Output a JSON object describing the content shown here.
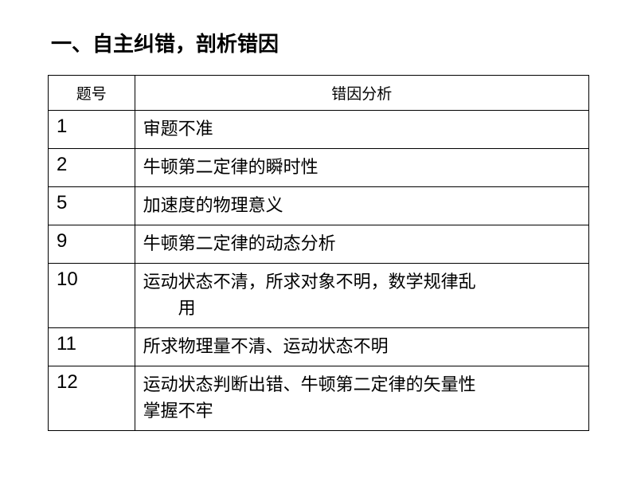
{
  "title": {
    "text": "一、自主纠错，剖析错因",
    "fontsize": 26,
    "color": "#000000"
  },
  "table": {
    "border_color": "#000000",
    "header_fontsize": 19,
    "cell_fontsize_num": 24,
    "cell_fontsize_text": 22,
    "columns": [
      {
        "label": "题号",
        "width_pct": 16,
        "align": "center"
      },
      {
        "label": "错因分析",
        "width_pct": 84,
        "align": "center"
      }
    ],
    "rows": [
      {
        "num": "1",
        "analysis": "审题不准"
      },
      {
        "num": "2",
        "analysis": "牛顿第二定律的瞬时性"
      },
      {
        "num": "5",
        "analysis": "加速度的物理意义"
      },
      {
        "num": "9",
        "analysis": "牛顿第二定律的动态分析"
      },
      {
        "num": "10",
        "analysis_line1": "运动状态不清，所求对象不明，数学规律乱",
        "analysis_line2": "用"
      },
      {
        "num": "11",
        "analysis": "所求物理量不清、运动状态不明"
      },
      {
        "num": "12",
        "analysis_line1": "运动状态判断出错、牛顿第二定律的矢量性",
        "analysis_line2_noindent": "掌握不牢"
      }
    ]
  }
}
